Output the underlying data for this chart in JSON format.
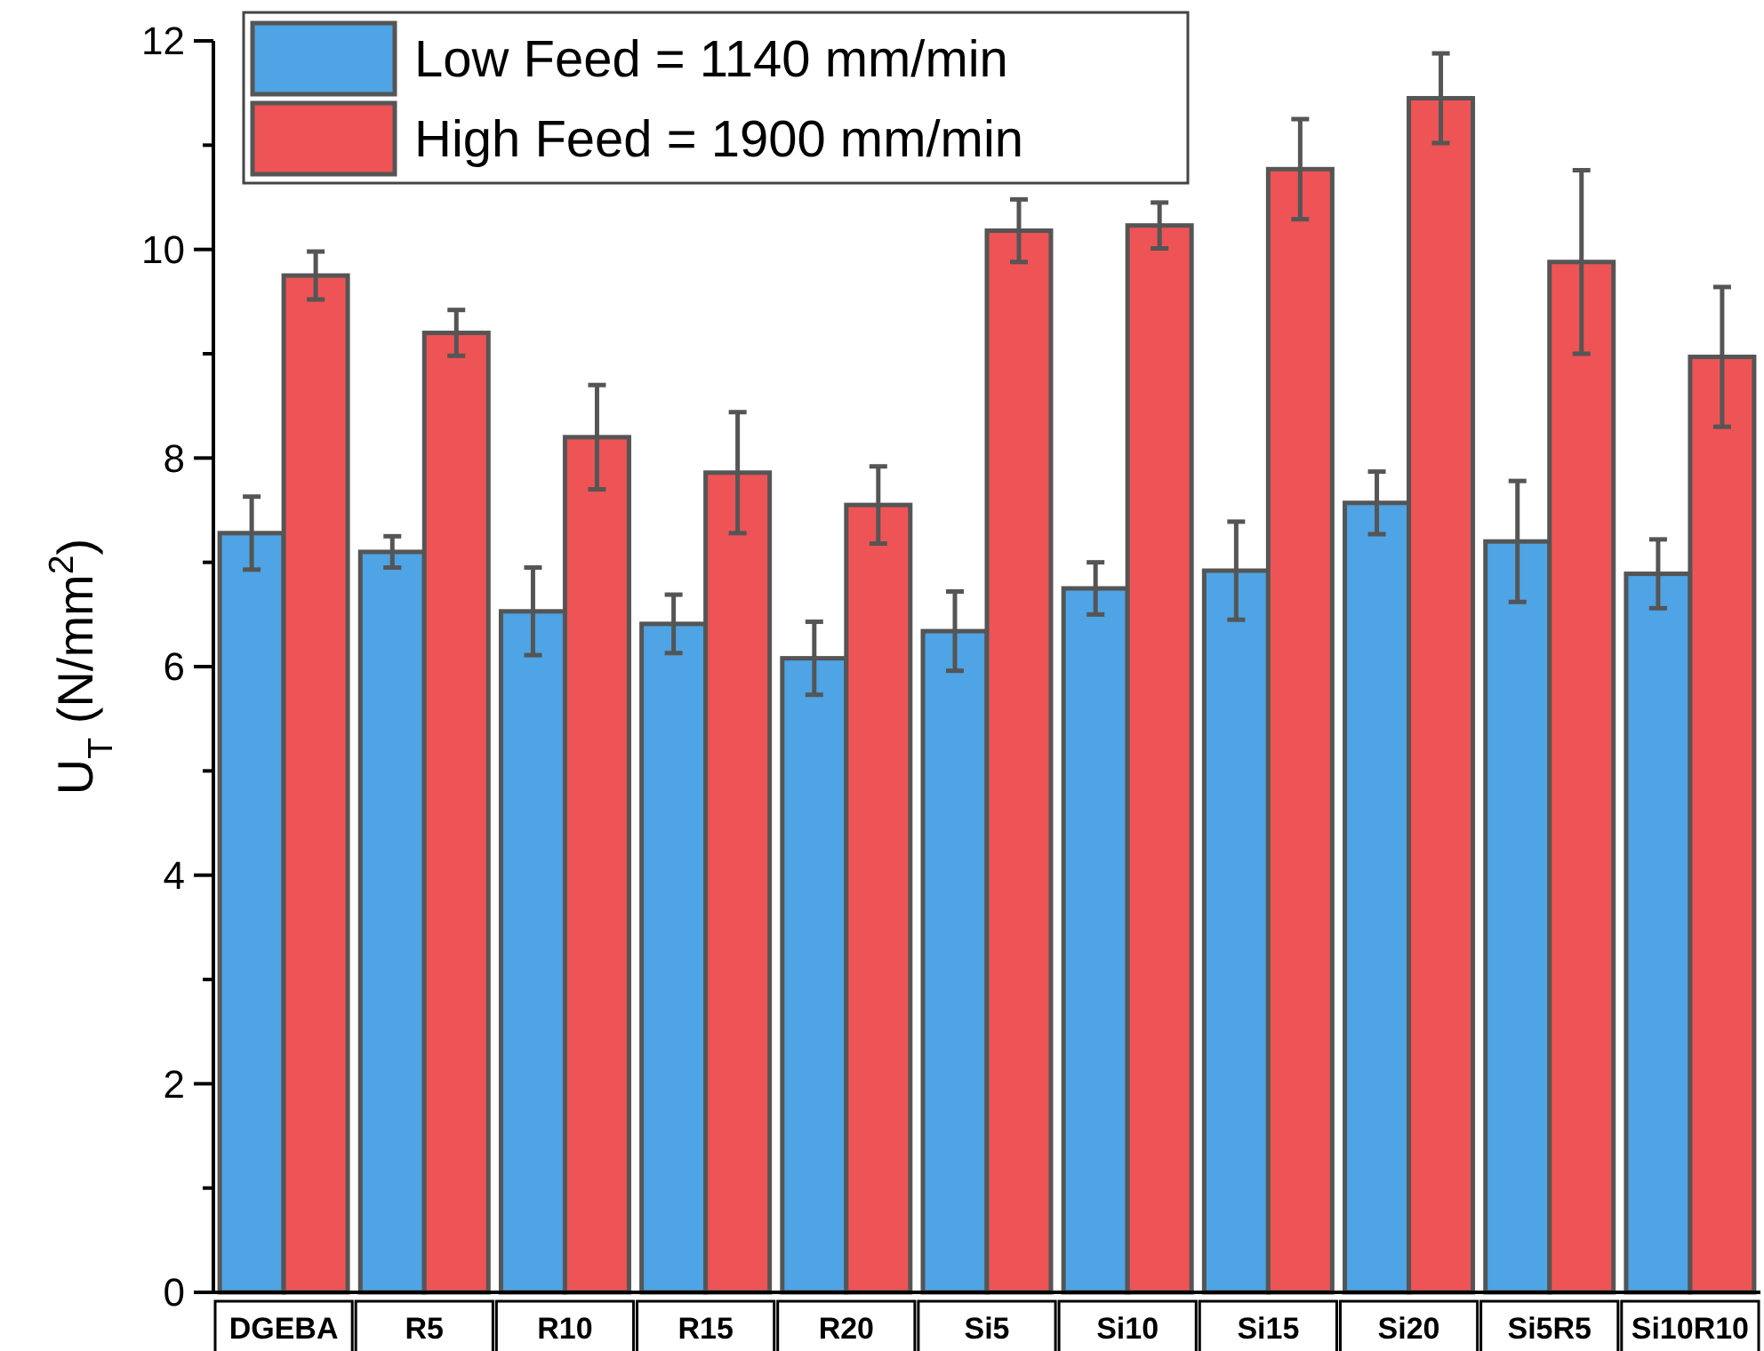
{
  "chart_data": {
    "type": "bar",
    "ylabel": "U$_{T}$ (N/mm$^{2}$)",
    "categories": [
      "DGEBA",
      "R5",
      "R10",
      "R15",
      "R20",
      "Si5",
      "Si10",
      "Si15",
      "Si20",
      "Si5R5",
      "Si10R10"
    ],
    "series": [
      {
        "name": "Low Feed = 1140 mm/min",
        "color": "#4ea4e4",
        "values": [
          7.28,
          7.1,
          6.53,
          6.41,
          6.08,
          6.34,
          6.75,
          6.92,
          7.57,
          7.2,
          6.89
        ],
        "errors": [
          0.35,
          0.15,
          0.42,
          0.28,
          0.35,
          0.38,
          0.25,
          0.47,
          0.3,
          0.58,
          0.33
        ]
      },
      {
        "name": "High Feed = 1900 mm/min",
        "color": "#ee5455",
        "values": [
          9.75,
          9.2,
          8.2,
          7.86,
          7.55,
          10.18,
          10.23,
          10.77,
          11.45,
          9.88,
          8.97
        ],
        "errors": [
          0.23,
          0.22,
          0.5,
          0.58,
          0.37,
          0.3,
          0.22,
          0.48,
          0.43,
          0.88,
          0.67
        ]
      }
    ],
    "ylim": [
      0,
      12
    ],
    "yticks": [
      0,
      {
        "value": 1,
        "label": null
      },
      2,
      {
        "value": 3,
        "label": null
      },
      4,
      {
        "value": 5,
        "label": null
      },
      6,
      {
        "value": 7,
        "label": null
      },
      8,
      {
        "value": 9,
        "label": null
      },
      10,
      {
        "value": 11,
        "label": null
      },
      12
    ],
    "grid": false,
    "legend": "top left"
  }
}
